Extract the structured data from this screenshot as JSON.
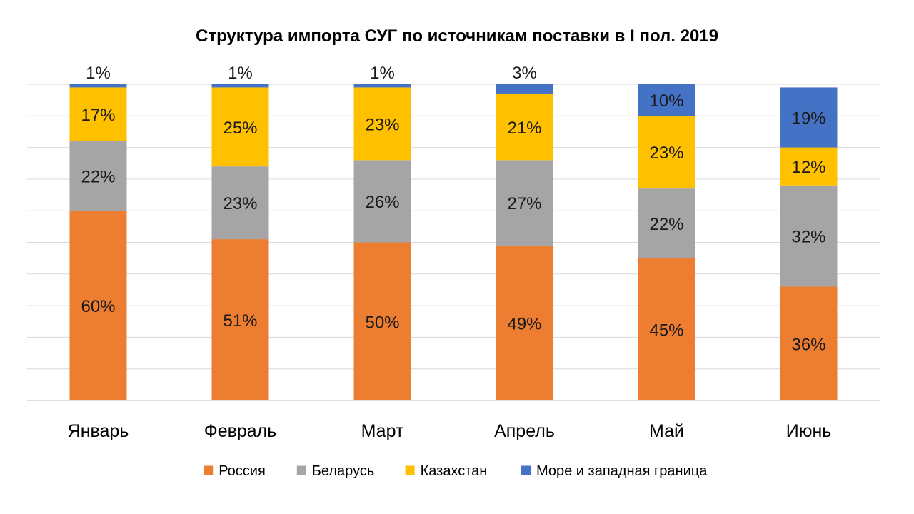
{
  "chart_data": {
    "type": "bar",
    "stacked": true,
    "title": "Структура импорта СУГ по источникам поставки в I пол. 2019",
    "categories": [
      "Январь",
      "Февраль",
      "Март",
      "Апрель",
      "Май",
      "Июнь"
    ],
    "series": [
      {
        "name": "Россия",
        "color": "#ED7D31",
        "values": [
          60,
          51,
          50,
          49,
          45,
          36
        ]
      },
      {
        "name": "Беларусь",
        "color": "#A5A5A5",
        "values": [
          22,
          23,
          26,
          27,
          22,
          32
        ]
      },
      {
        "name": "Казахстан",
        "color": "#FFC000",
        "values": [
          17,
          25,
          23,
          21,
          23,
          12
        ]
      },
      {
        "name": "Море и западная граница",
        "color": "#4472C4",
        "values": [
          1,
          1,
          1,
          3,
          10,
          19
        ]
      }
    ],
    "value_suffix": "%",
    "ylim": [
      0,
      100
    ],
    "grid": true,
    "legend_position": "bottom"
  }
}
